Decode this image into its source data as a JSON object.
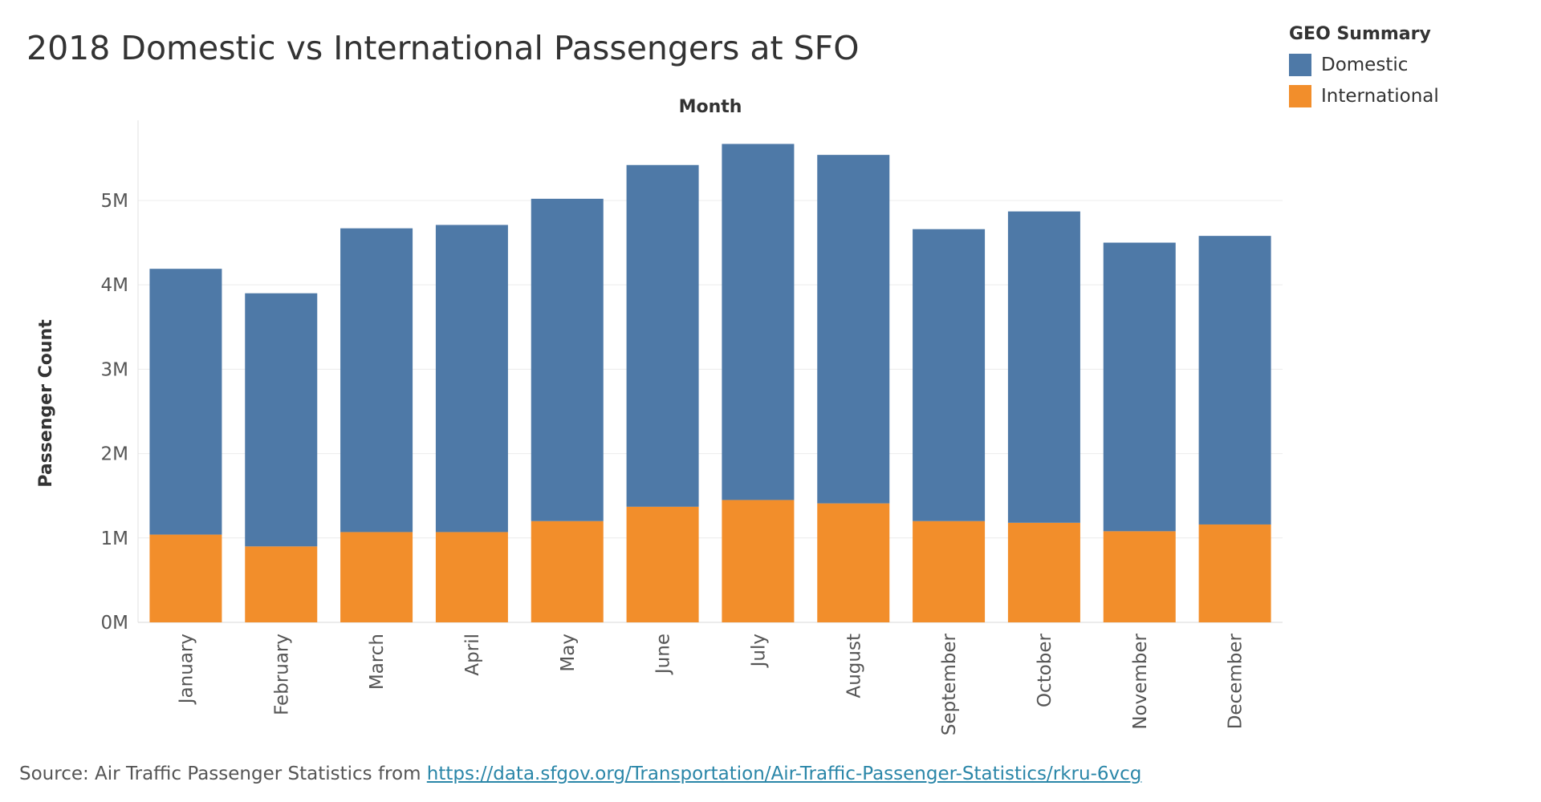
{
  "title": "2018 Domestic vs International Passengers at SFO",
  "legend": {
    "title": "GEO Summary",
    "items": [
      {
        "label": "Domestic",
        "color": "#4e79a7"
      },
      {
        "label": "International",
        "color": "#f28e2b"
      }
    ]
  },
  "source": {
    "prefix": "Source: Air Traffic Passenger Statistics from ",
    "link_text": "https://data.sfgov.org/Transportation/Air-Traffic-Passenger-Statistics/rkru-6vcg"
  },
  "chart_data": {
    "type": "bar",
    "stacked": true,
    "title": "2018 Domestic vs International Passengers at SFO",
    "xlabel": "Month",
    "ylabel": "Passenger Count",
    "categories": [
      "January",
      "February",
      "March",
      "April",
      "May",
      "June",
      "July",
      "August",
      "September",
      "October",
      "November",
      "December"
    ],
    "series": [
      {
        "name": "Domestic",
        "color": "#4e79a7",
        "values": [
          3150000,
          3000000,
          3600000,
          3640000,
          3820000,
          4050000,
          4220000,
          4130000,
          3460000,
          3690000,
          3420000,
          3420000
        ]
      },
      {
        "name": "International",
        "color": "#f28e2b",
        "values": [
          1040000,
          900000,
          1070000,
          1070000,
          1200000,
          1370000,
          1450000,
          1410000,
          1200000,
          1180000,
          1080000,
          1160000
        ]
      }
    ],
    "yticks": [
      0,
      1000000,
      2000000,
      3000000,
      4000000,
      5000000
    ],
    "ytick_labels": [
      "0M",
      "1M",
      "2M",
      "3M",
      "4M",
      "5M"
    ],
    "ylim": [
      0,
      5950000
    ],
    "grid": true,
    "legend_position": "top-right"
  }
}
